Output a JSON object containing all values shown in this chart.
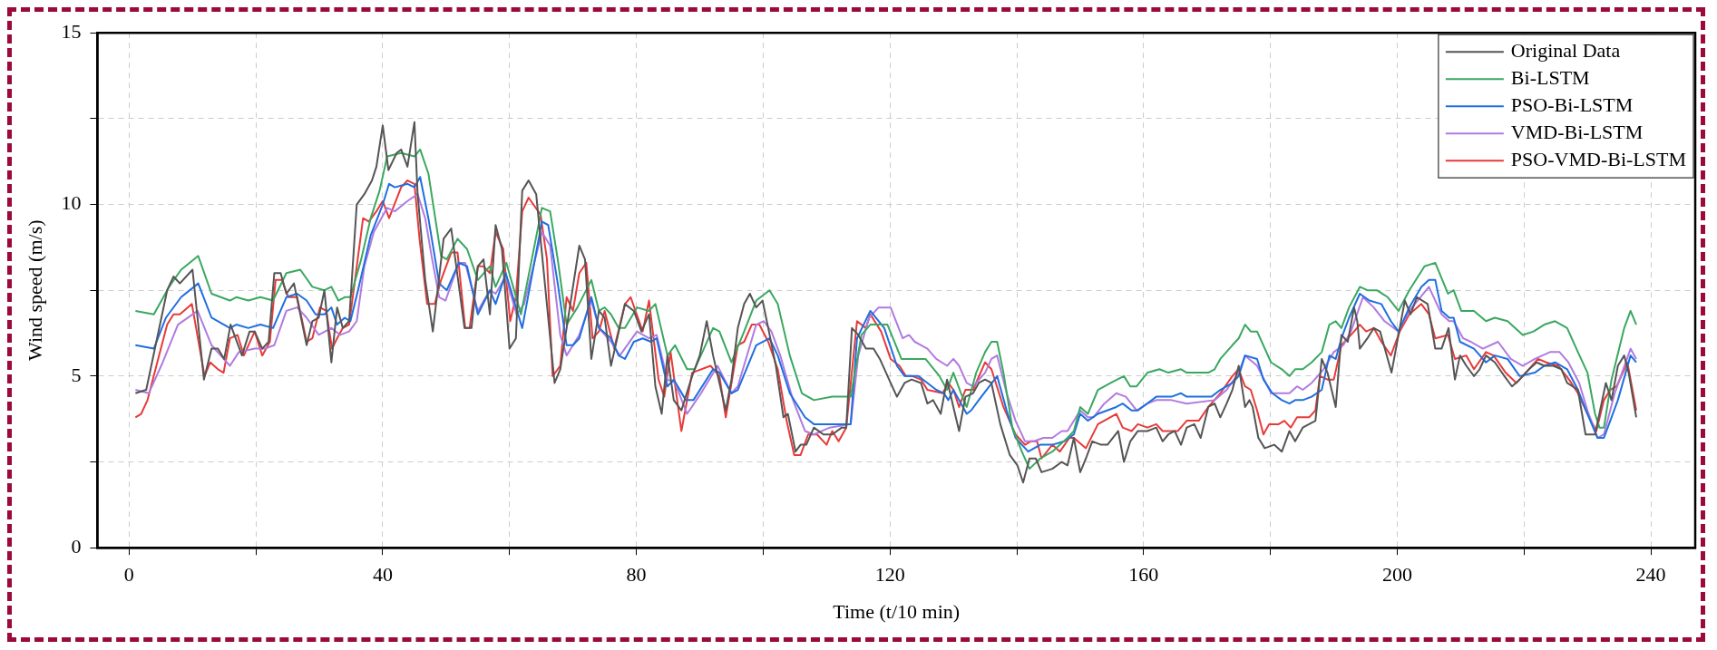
{
  "chart_data": {
    "type": "line",
    "xlabel": "Time (t/10 min)",
    "ylabel": "Wind speed (m/s)",
    "xlim": [
      -5,
      247
    ],
    "ylim": [
      0,
      15
    ],
    "xticks": [
      0,
      {
        "value": 20,
        "label": null
      },
      40,
      {
        "value": 60,
        "label": null
      },
      80,
      {
        "value": 100,
        "label": null
      },
      120,
      {
        "value": 140,
        "label": null
      },
      160,
      {
        "value": 180,
        "label": null
      },
      200,
      {
        "value": 220,
        "label": null
      },
      240
    ],
    "yticks": [
      0,
      {
        "value": 2.5,
        "label": null
      },
      5,
      {
        "value": 7.5,
        "label": null
      },
      10,
      {
        "value": 12.5,
        "label": null
      },
      15
    ],
    "grid": true,
    "legend": "top right",
    "line_style": "solid",
    "marker": "none",
    "series": [
      {
        "name": "Original Data",
        "color": "#555555",
        "x": [
          1,
          2.7,
          6,
          7,
          8,
          10,
          11.8,
          13,
          14,
          15,
          16,
          17.8,
          19,
          19.8,
          21,
          22,
          22.9,
          23.9,
          24.8,
          26,
          28,
          28.9,
          29.9,
          30.8,
          31.9,
          32.8,
          33.7,
          34.7,
          35.9,
          37.1,
          38.3,
          39,
          40,
          40.9,
          42.2,
          42.9,
          43.9,
          45,
          45.5,
          46.7,
          47.9,
          49.6,
          50.8,
          52.9,
          54,
          55,
          55.9,
          56.9,
          57.8,
          58.8,
          60,
          61,
          62,
          63,
          64.2,
          67.1,
          68,
          70,
          71,
          71.9,
          72.9,
          74.1,
          75,
          76,
          78.2,
          79.6,
          80.8,
          82,
          83,
          84,
          84.9,
          85.9,
          87.1,
          88.8,
          90,
          91.1,
          92.1,
          94.1,
          95,
          96,
          97,
          97.9,
          98.9,
          99.9,
          100.8,
          102,
          103.2,
          103.9,
          105.1,
          105.9,
          106.8,
          108,
          109.5,
          110.9,
          112.4,
          113.1,
          114,
          115,
          116.2,
          117.4,
          118.4,
          120.1,
          121.1,
          122.3,
          123.4,
          124.9,
          125.9,
          126.8,
          128,
          129,
          130,
          130.9,
          131.9,
          133.1,
          134,
          135,
          136,
          137.4,
          138.9,
          140.1,
          141,
          142,
          143,
          143.9,
          145.6,
          147.1,
          148,
          149,
          150,
          150.9,
          151.9,
          153.3,
          154.3,
          156,
          156.9,
          157.9,
          159.1,
          160.6,
          162,
          163,
          163.9,
          164.9,
          165.9,
          166.8,
          168,
          169,
          170.2,
          171.2,
          172.1,
          173.1,
          174,
          175,
          176,
          176.7,
          177.2,
          178.1,
          179.1,
          180.6,
          181.8,
          183,
          183.9,
          185.1,
          186.1,
          187.1,
          188.1,
          189,
          190.3,
          191.2,
          192.2,
          193.2,
          193.7,
          194.1,
          195.3,
          196.3,
          197.3,
          199.1,
          200.2,
          201.2,
          202.1,
          203.1,
          204.8,
          206,
          207,
          208.1,
          209.1,
          209.9,
          210.9,
          212.1,
          213,
          214,
          215.4,
          216.9,
          218.1,
          219.3,
          220.8,
          222,
          223.2,
          224.6,
          225.9,
          226.8,
          228.5,
          229.7,
          231.2,
          232.9,
          233.8,
          234.8,
          235.8,
          236.5,
          237.7
        ],
        "values": [
          4.5,
          4.6,
          7.5,
          7.9,
          7.7,
          8.1,
          4.9,
          5.8,
          5.8,
          5.5,
          6.5,
          5.6,
          6.3,
          6.3,
          5.8,
          6.0,
          8.0,
          8.0,
          7.4,
          7.7,
          5.9,
          6.6,
          6.7,
          7.5,
          5.4,
          7.0,
          6.4,
          6.6,
          10.0,
          10.3,
          10.7,
          11.1,
          12.3,
          11.0,
          11.5,
          11.6,
          11.1,
          12.4,
          10.3,
          7.8,
          6.3,
          9.0,
          9.3,
          6.4,
          6.4,
          8.2,
          8.4,
          6.8,
          9.4,
          8.7,
          5.8,
          6.1,
          10.4,
          10.7,
          10.3,
          4.8,
          5.2,
          7.6,
          8.8,
          8.4,
          5.5,
          6.9,
          6.7,
          5.3,
          7.1,
          6.9,
          6.3,
          6.8,
          4.7,
          3.9,
          5.6,
          4.3,
          4.0,
          5.0,
          5.6,
          6.6,
          5.6,
          4.0,
          4.9,
          6.4,
          7.1,
          7.4,
          7.0,
          7.2,
          6.4,
          5.3,
          3.8,
          3.9,
          2.8,
          3.0,
          3.0,
          3.5,
          3.3,
          3.3,
          3.5,
          3.5,
          6.4,
          6.2,
          5.8,
          5.8,
          5.5,
          4.8,
          4.4,
          4.8,
          4.9,
          4.8,
          4.2,
          4.3,
          3.9,
          4.9,
          4.1,
          3.4,
          4.4,
          4.5,
          4.8,
          4.9,
          4.8,
          3.6,
          2.7,
          2.4,
          1.9,
          2.6,
          2.6,
          2.2,
          2.3,
          2.5,
          2.4,
          3.2,
          2.2,
          2.6,
          3.1,
          3.0,
          3.0,
          3.4,
          2.5,
          3.1,
          3.4,
          3.4,
          3.5,
          3.1,
          3.3,
          3.4,
          3.0,
          3.5,
          3.6,
          3.2,
          4.1,
          4.2,
          3.8,
          4.2,
          4.6,
          5.3,
          4.1,
          4.3,
          4.1,
          3.2,
          2.9,
          3.0,
          2.8,
          3.4,
          3.1,
          3.5,
          3.6,
          3.7,
          5.5,
          5.1,
          4.1,
          6.2,
          6.0,
          7.0,
          6.6,
          5.8,
          6.1,
          6.4,
          6.3,
          5.1,
          6.2,
          7.2,
          6.8,
          7.3,
          7.1,
          5.8,
          5.8,
          6.4,
          4.9,
          5.6,
          5.3,
          5.0,
          5.2,
          5.6,
          5.4,
          5.0,
          4.7,
          4.9,
          5.2,
          5.4,
          5.3,
          5.3,
          5.2,
          4.8,
          4.6,
          3.3,
          3.3,
          4.8,
          4.3,
          5.3,
          5.6,
          5.1,
          3.8
        ]
      },
      {
        "name": "Bi-LSTM",
        "color": "#3aa860",
        "x": [
          1,
          3.9,
          6.3,
          8.2,
          10.9,
          13,
          15.9,
          16.9,
          18.8,
          20.7,
          22.7,
          24.8,
          27,
          28.9,
          30.8,
          31.9,
          33,
          34,
          34.9,
          36.6,
          38.1,
          39.5,
          40.7,
          42.9,
          45,
          45.9,
          47.2,
          49.2,
          50.1,
          51.8,
          53.3,
          55,
          56.9,
          57.8,
          59.5,
          61.8,
          65.1,
          66.4,
          67.6,
          69,
          70.7,
          72.9,
          74.1,
          75,
          76,
          77.2,
          78.2,
          80.1,
          82,
          83,
          84.9,
          86.1,
          88,
          89.2,
          92.1,
          93.1,
          95,
          97,
          98.9,
          101,
          102.3,
          104.2,
          106.1,
          108,
          110.9,
          113.8,
          115.5,
          116.9,
          119.6,
          121.8,
          123.5,
          125.6,
          127.8,
          129,
          130,
          131.2,
          132.1,
          133.6,
          135,
          136,
          136.9,
          137.9,
          139.3,
          140.8,
          142,
          143.7,
          145.6,
          148,
          149,
          150,
          151.2,
          152.8,
          154.8,
          156.9,
          157.9,
          158.9,
          160.6,
          162.5,
          163.9,
          165.9,
          166.8,
          168.7,
          170.2,
          171.2,
          172.1,
          174,
          175,
          176,
          176.9,
          177.9,
          180.1,
          181.8,
          183,
          183.9,
          185.1,
          186.5,
          188.1,
          189.3,
          190.3,
          191.2,
          192.4,
          194.1,
          195.3,
          196.8,
          198.5,
          200.2,
          201.9,
          204.3,
          206,
          208,
          208.9,
          210.1,
          212.1,
          214,
          215.4,
          217.4,
          219.8,
          221.5,
          223.2,
          224.9,
          226.8,
          228.5,
          230,
          231.2,
          231.9,
          232.6,
          233.8,
          235.8,
          236.8,
          237.7
        ],
        "values": [
          6.9,
          6.8,
          7.6,
          8.1,
          8.5,
          7.4,
          7.2,
          7.3,
          7.2,
          7.3,
          7.2,
          8.0,
          8.1,
          7.6,
          7.5,
          7.6,
          7.2,
          7.3,
          7.3,
          8.4,
          9.6,
          10.4,
          11.4,
          11.5,
          11.4,
          11.6,
          10.9,
          8.5,
          8.4,
          9.0,
          8.7,
          7.8,
          8.2,
          7.6,
          8.3,
          6.8,
          9.9,
          9.8,
          8.4,
          6.5,
          7.0,
          7.8,
          6.9,
          7.0,
          6.8,
          6.4,
          6.4,
          7.0,
          6.9,
          7.1,
          5.6,
          5.9,
          5.2,
          5.2,
          6.4,
          6.3,
          5.4,
          6.3,
          7.2,
          7.5,
          7.1,
          5.6,
          4.5,
          4.3,
          4.4,
          4.4,
          6.2,
          6.5,
          6.5,
          5.5,
          5.5,
          5.5,
          5.0,
          4.6,
          5.1,
          4.5,
          4.1,
          5.1,
          5.7,
          6.0,
          6.0,
          5.1,
          3.5,
          2.8,
          2.3,
          2.6,
          2.8,
          3.2,
          3.4,
          4.1,
          3.9,
          4.6,
          4.8,
          5.0,
          4.7,
          4.7,
          5.1,
          5.2,
          5.1,
          5.2,
          5.1,
          5.1,
          5.1,
          5.2,
          5.5,
          5.9,
          6.1,
          6.5,
          6.3,
          6.3,
          5.4,
          5.2,
          5.0,
          5.2,
          5.2,
          5.4,
          5.7,
          6.5,
          6.6,
          6.4,
          7.0,
          7.6,
          7.5,
          7.5,
          7.3,
          6.9,
          7.5,
          8.2,
          8.3,
          7.4,
          7.5,
          6.9,
          6.9,
          6.6,
          6.7,
          6.6,
          6.2,
          6.3,
          6.5,
          6.6,
          6.4,
          5.7,
          5.1,
          3.9,
          3.5,
          3.5,
          4.9,
          6.4,
          6.9,
          6.5
        ]
      },
      {
        "name": "PSO-Bi-LSTM",
        "color": "#1f6fe0",
        "x": [
          1,
          3.9,
          5.8,
          8.2,
          10.9,
          13,
          15.9,
          16.9,
          18.8,
          20.7,
          22.7,
          24.8,
          26.5,
          28,
          29.4,
          30.8,
          31.9,
          32.8,
          34,
          34.9,
          36.1,
          38.1,
          40,
          41,
          41.9,
          43.9,
          45,
          45.9,
          47.2,
          48.9,
          50.1,
          52,
          53.3,
          55,
          56.9,
          57.8,
          59.4,
          62,
          65.1,
          66.1,
          67.6,
          69,
          70,
          71,
          72.9,
          74.1,
          76,
          77.2,
          78.2,
          79.6,
          81,
          82.3,
          83.2,
          84.9,
          85.9,
          87.8,
          89,
          92.1,
          93.1,
          95,
          96,
          98.9,
          101,
          102.3,
          104.2,
          106.6,
          108,
          110.9,
          113.8,
          114.8,
          116.9,
          119.1,
          121.1,
          122.3,
          124.5,
          127.3,
          128.5,
          129.2,
          130,
          132.1,
          132.8,
          134,
          136.9,
          138.4,
          139.8,
          141.8,
          143.7,
          145.6,
          147.5,
          149,
          150,
          151.2,
          152.8,
          155.7,
          156.7,
          158.1,
          159.1,
          162,
          164.4,
          165.9,
          166.8,
          170.7,
          172.1,
          174,
          175,
          176,
          177.9,
          178.9,
          180.3,
          181.8,
          183,
          183.9,
          185.1,
          186.5,
          188.1,
          189.3,
          190.3,
          191.2,
          192.4,
          194.1,
          195.6,
          197.5,
          199,
          200.2,
          201.9,
          203.8,
          205,
          206,
          207,
          208.2,
          208.9,
          209.9,
          212.1,
          214,
          215.4,
          217.4,
          219.3,
          221.7,
          223.2,
          224.9,
          226.8,
          228.5,
          230,
          231.6,
          232.6,
          233.8,
          234.8,
          236.8,
          237.7
        ],
        "values": [
          5.9,
          5.8,
          6.7,
          7.3,
          7.7,
          6.7,
          6.4,
          6.5,
          6.4,
          6.5,
          6.4,
          7.3,
          7.4,
          7.2,
          6.8,
          6.8,
          7.0,
          6.5,
          6.7,
          6.6,
          7.5,
          9.1,
          10.0,
          10.6,
          10.5,
          10.6,
          10.5,
          10.8,
          9.6,
          7.7,
          7.5,
          8.3,
          8.2,
          6.8,
          7.5,
          7.1,
          8.0,
          6.4,
          9.5,
          9.4,
          7.7,
          5.9,
          5.9,
          6.1,
          7.3,
          6.4,
          6.1,
          5.6,
          5.5,
          6.0,
          6.1,
          6.0,
          6.1,
          4.7,
          4.9,
          4.3,
          4.3,
          5.2,
          5.1,
          4.5,
          4.6,
          5.9,
          6.1,
          5.6,
          4.5,
          3.8,
          3.6,
          3.6,
          3.6,
          6.1,
          6.9,
          6.4,
          5.3,
          5.0,
          5.0,
          4.6,
          4.5,
          4.3,
          4.6,
          3.9,
          4.0,
          4.3,
          5.0,
          4.0,
          3.2,
          2.8,
          3.0,
          3.0,
          3.1,
          3.3,
          3.9,
          3.7,
          3.9,
          4.1,
          4.2,
          4.0,
          4.0,
          4.4,
          4.4,
          4.5,
          4.4,
          4.4,
          4.6,
          4.8,
          5.0,
          5.6,
          5.5,
          4.9,
          4.5,
          4.3,
          4.2,
          4.3,
          4.3,
          4.4,
          4.6,
          5.6,
          5.5,
          6.1,
          6.7,
          7.4,
          7.2,
          7.1,
          6.6,
          6.3,
          7.0,
          7.6,
          7.8,
          7.8,
          6.9,
          6.7,
          6.7,
          6.0,
          5.8,
          5.4,
          5.6,
          5.5,
          5.0,
          5.1,
          5.3,
          5.4,
          5.2,
          4.6,
          3.9,
          3.2,
          3.2,
          3.8,
          4.3,
          5.6,
          5.4
        ]
      },
      {
        "name": "VMD-Bi-LSTM",
        "color": "#b07be0",
        "x": [
          1,
          3.1,
          5.3,
          7.7,
          10.8,
          13,
          15.9,
          17.3,
          19.8,
          21.4,
          22.9,
          24.8,
          26.5,
          28,
          29.9,
          31.9,
          33.3,
          34.7,
          35.9,
          37.1,
          38.6,
          40.7,
          41.9,
          43.9,
          45.5,
          46.7,
          47.7,
          48.9,
          49.9,
          52,
          53,
          55,
          56.9,
          57.8,
          59.4,
          61.1,
          62.3,
          65.1,
          66.4,
          68,
          69,
          71,
          72.9,
          74.1,
          76,
          77.4,
          80.1,
          82,
          83.2,
          84.9,
          86.1,
          88,
          90.2,
          92.8,
          95,
          96,
          98.9,
          100.1,
          101.3,
          102.7,
          104.7,
          106.6,
          108,
          110.5,
          113.8,
          115,
          116.7,
          118.2,
          120.1,
          122,
          123,
          123.9,
          125.9,
          127.3,
          129,
          130,
          130.9,
          132.1,
          133.1,
          135,
          136,
          136.9,
          138.4,
          139.8,
          141.3,
          142.7,
          144.2,
          145.6,
          147.1,
          148,
          150,
          151.2,
          152.1,
          153.8,
          155.7,
          157.2,
          158.9,
          160.6,
          162,
          164.4,
          166.8,
          171.2,
          173.1,
          175,
          176,
          177.9,
          180.1,
          183,
          184.2,
          185.1,
          186.5,
          188.4,
          190,
          191.5,
          192.7,
          194.6,
          196.3,
          198,
          200.2,
          201.9,
          205,
          207,
          208.2,
          208.9,
          210.4,
          211.6,
          213.5,
          215.9,
          217.9,
          219.8,
          221.7,
          224.1,
          225.6,
          227,
          228.7,
          230,
          231.6,
          232.6,
          234.3,
          236.8,
          237.7
        ],
        "values": [
          4.6,
          4.5,
          5.4,
          6.5,
          6.9,
          5.9,
          5.3,
          5.7,
          5.8,
          5.8,
          5.9,
          6.9,
          7.0,
          6.7,
          6.2,
          6.4,
          6.2,
          6.3,
          6.6,
          8.2,
          9.2,
          9.9,
          9.8,
          10.1,
          10.3,
          9.6,
          8.5,
          7.3,
          7.2,
          8.3,
          8.3,
          6.9,
          7.5,
          7.4,
          7.9,
          6.8,
          7.1,
          9.2,
          8.8,
          6.2,
          5.6,
          6.2,
          7.2,
          6.4,
          6.0,
          5.6,
          6.3,
          6.1,
          6.2,
          4.9,
          4.8,
          3.9,
          4.5,
          5.3,
          4.5,
          4.7,
          6.5,
          6.6,
          6.3,
          5.6,
          4.3,
          3.4,
          3.3,
          3.5,
          3.6,
          5.6,
          6.7,
          7.0,
          7.0,
          6.1,
          6.2,
          6.0,
          5.8,
          5.5,
          5.3,
          5.5,
          5.3,
          4.8,
          4.7,
          5.1,
          5.5,
          5.6,
          4.5,
          3.7,
          3.1,
          3.1,
          3.2,
          3.2,
          3.4,
          3.4,
          4.0,
          3.8,
          3.8,
          4.2,
          4.5,
          4.4,
          4.0,
          4.2,
          4.3,
          4.3,
          4.2,
          4.3,
          4.6,
          5.1,
          5.6,
          5.3,
          4.5,
          4.5,
          4.7,
          4.6,
          4.8,
          5.2,
          5.7,
          5.9,
          6.3,
          7.3,
          7.0,
          6.6,
          6.3,
          6.9,
          7.6,
          6.8,
          6.6,
          6.6,
          6.1,
          6.0,
          5.8,
          6.0,
          5.5,
          5.3,
          5.5,
          5.7,
          5.7,
          5.4,
          4.8,
          4.0,
          3.2,
          3.3,
          4.5,
          5.8,
          5.5
        ]
      },
      {
        "name": "PSO-VMD-Bi-LSTM",
        "color": "#e83a3a",
        "x": [
          1,
          1.9,
          2.9,
          4.3,
          6,
          7,
          8,
          9.9,
          11.9,
          12.8,
          14,
          14.9,
          15.9,
          17.1,
          18.1,
          19.8,
          21,
          22.2,
          23.1,
          24.1,
          25.1,
          26.5,
          28,
          28.9,
          30.1,
          31.1,
          32,
          32.8,
          33.7,
          34.7,
          36.9,
          37.8,
          39,
          40,
          41,
          42.9,
          43.9,
          45,
          45.8,
          47,
          48.2,
          49.2,
          50.8,
          51.8,
          53,
          53.7,
          55,
          55.9,
          56.9,
          57.8,
          59,
          60.1,
          61,
          62,
          63,
          64.9,
          65.9,
          66.8,
          68,
          69,
          70,
          71,
          72.1,
          73.1,
          74.1,
          75,
          76.5,
          78.2,
          79.1,
          81,
          82,
          83.5,
          84.4,
          85.4,
          87.1,
          88.8,
          91.7,
          93.1,
          94.1,
          96,
          97,
          98.2,
          99.4,
          100.8,
          102.3,
          103.7,
          104.9,
          105.9,
          107.1,
          108.5,
          110,
          110.9,
          111.9,
          113.1,
          114.8,
          116.2,
          116.9,
          118.6,
          120.1,
          121.5,
          122.5,
          123.5,
          124.9,
          125.9,
          128.3,
          129.2,
          130,
          130.9,
          131.9,
          133.1,
          135,
          136,
          137.9,
          139.8,
          141.3,
          142.2,
          143.2,
          143.9,
          145.6,
          146.8,
          148.3,
          149,
          150.9,
          152.8,
          155.7,
          156.7,
          158.1,
          159.1,
          160.6,
          162,
          163,
          165.4,
          166.8,
          168.7,
          170.2,
          172.1,
          174,
          175,
          176,
          176.9,
          177.9,
          178.9,
          179.8,
          181.3,
          182.2,
          183.2,
          184.2,
          186.1,
          187.1,
          187.8,
          189,
          190,
          191.2,
          193.2,
          194.1,
          195.1,
          196.3,
          197.5,
          199,
          200.4,
          201.9,
          203.8,
          205,
          206,
          208,
          209.1,
          210.9,
          212.1,
          214,
          215.2,
          217.1,
          218.8,
          219.8,
          222.2,
          223.5,
          225.4,
          227.1,
          228.5,
          230,
          231.4,
          232.6,
          233.6,
          234.6,
          236.3,
          237.7
        ],
        "values": [
          3.8,
          3.9,
          4.3,
          5.3,
          6.5,
          6.8,
          6.8,
          7.1,
          5.0,
          5.4,
          5.2,
          5.1,
          6.1,
          6.2,
          5.6,
          6.3,
          5.6,
          6.0,
          7.8,
          7.8,
          7.3,
          7.3,
          6.0,
          6.1,
          7.0,
          6.9,
          5.8,
          6.1,
          6.4,
          6.5,
          9.6,
          9.5,
          9.8,
          10.1,
          9.6,
          10.5,
          10.7,
          10.6,
          9.0,
          7.1,
          7.1,
          7.8,
          8.6,
          8.6,
          6.4,
          6.4,
          8.2,
          8.2,
          8.0,
          9.2,
          8.7,
          6.6,
          7.3,
          9.8,
          10.2,
          9.7,
          8.4,
          5.0,
          5.3,
          7.3,
          6.9,
          8.0,
          8.3,
          6.1,
          6.3,
          6.9,
          5.8,
          7.1,
          7.3,
          6.3,
          7.2,
          4.9,
          4.4,
          5.7,
          3.4,
          5.1,
          5.3,
          5.0,
          3.8,
          5.9,
          6.0,
          6.5,
          6.5,
          6.0,
          5.2,
          3.7,
          2.7,
          2.7,
          3.3,
          3.3,
          3.0,
          3.4,
          3.1,
          3.5,
          6.6,
          6.4,
          6.8,
          6.3,
          5.5,
          5.3,
          5.0,
          5.0,
          4.9,
          4.6,
          4.5,
          4.8,
          4.6,
          4.1,
          4.6,
          4.6,
          5.4,
          5.2,
          4.1,
          3.3,
          3.0,
          3.1,
          3.1,
          2.6,
          3.0,
          2.8,
          3.2,
          3.2,
          2.9,
          3.6,
          3.9,
          3.5,
          3.4,
          3.6,
          3.5,
          3.6,
          3.4,
          3.4,
          3.7,
          3.7,
          4.1,
          4.5,
          5.0,
          5.2,
          4.7,
          4.6,
          4.0,
          3.3,
          3.6,
          3.6,
          3.7,
          3.5,
          3.8,
          3.8,
          4.0,
          5.0,
          4.9,
          4.9,
          5.9,
          6.3,
          6.5,
          6.3,
          6.4,
          6.0,
          5.6,
          6.3,
          6.8,
          7.1,
          6.8,
          6.1,
          6.2,
          5.5,
          5.6,
          5.2,
          5.7,
          5.6,
          5.1,
          4.8,
          5.0,
          5.5,
          5.4,
          5.3,
          4.9,
          4.5,
          3.9,
          3.4,
          4.3,
          4.6,
          4.7,
          5.4,
          4.0
        ]
      }
    ]
  }
}
